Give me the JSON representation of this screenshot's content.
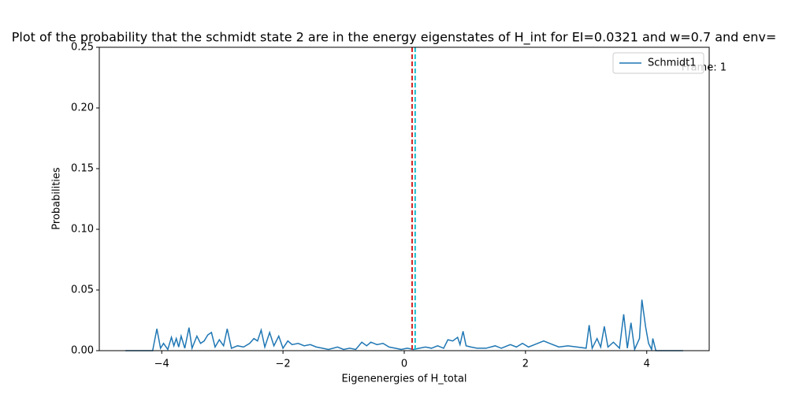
{
  "chart_data": {
    "type": "line",
    "title": "Plot of the probability that the schmidt state 2  are in the energy eigenstates of H_int for EI=0.0321 and w=0.7 and env=",
    "x_label": "Eigenenergies of H_total",
    "y_label": "Probabilities",
    "annotation": "Frame: 1",
    "legend": "upper right",
    "xlim": [
      -5.03,
      5.03
    ],
    "ylim": [
      0,
      0.25
    ],
    "xticks": [
      {
        "value": -4,
        "label": "−4"
      },
      {
        "value": -2,
        "label": "−2"
      },
      0,
      2,
      4
    ],
    "yticks": [
      {
        "value": 0,
        "label": "0.00"
      },
      {
        "value": 0.05,
        "label": "0.05"
      },
      {
        "value": 0.1,
        "label": "0.10"
      },
      {
        "value": 0.15,
        "label": "0.15"
      },
      {
        "value": 0.2,
        "label": "0.20"
      },
      {
        "value": 0.25,
        "label": "0.25"
      }
    ],
    "vlines": [
      {
        "x": 0.13,
        "color": "#d62728"
      },
      {
        "x": 0.18,
        "color": "#17becf"
      }
    ],
    "x": [
      -4.6,
      -4.15,
      -4.08,
      -4.02,
      -3.97,
      -3.9,
      -3.84,
      -3.8,
      -3.76,
      -3.72,
      -3.68,
      -3.62,
      -3.55,
      -3.5,
      -3.42,
      -3.36,
      -3.3,
      -3.24,
      -3.18,
      -3.12,
      -3.05,
      -2.98,
      -2.92,
      -2.85,
      -2.75,
      -2.65,
      -2.55,
      -2.48,
      -2.42,
      -2.36,
      -2.3,
      -2.22,
      -2.15,
      -2.07,
      -2.0,
      -1.92,
      -1.85,
      -1.75,
      -1.65,
      -1.55,
      -1.45,
      -1.35,
      -1.25,
      -1.1,
      -1.0,
      -0.9,
      -0.8,
      -0.7,
      -0.62,
      -0.55,
      -0.45,
      -0.35,
      -0.25,
      -0.15,
      -0.05,
      0.05,
      0.15,
      0.25,
      0.35,
      0.45,
      0.55,
      0.65,
      0.72,
      0.8,
      0.88,
      0.92,
      0.97,
      1.02,
      1.1,
      1.2,
      1.35,
      1.5,
      1.6,
      1.75,
      1.85,
      1.95,
      2.05,
      2.15,
      2.3,
      2.4,
      2.55,
      2.7,
      2.85,
      3.0,
      3.05,
      3.1,
      3.18,
      3.24,
      3.3,
      3.36,
      3.45,
      3.55,
      3.62,
      3.68,
      3.74,
      3.8,
      3.88,
      3.92,
      3.98,
      4.03,
      4.08,
      4.1,
      4.15,
      4.6
    ],
    "series": [
      {
        "name": "Schmidt1",
        "color": "#1f77b4",
        "values": [
          0,
          0,
          0.018,
          0.002,
          0.006,
          0.001,
          0.011,
          0.004,
          0.01,
          0.003,
          0.012,
          0.002,
          0.019,
          0.002,
          0.012,
          0.006,
          0.008,
          0.013,
          0.015,
          0.003,
          0.009,
          0.004,
          0.018,
          0.002,
          0.004,
          0.003,
          0.006,
          0.01,
          0.008,
          0.017,
          0.003,
          0.015,
          0.004,
          0.012,
          0.002,
          0.008,
          0.005,
          0.006,
          0.004,
          0.005,
          0.003,
          0.002,
          0.001,
          0.003,
          0.001,
          0.002,
          0.001,
          0.007,
          0.004,
          0.007,
          0.005,
          0.006,
          0.003,
          0.002,
          0.001,
          0.002,
          0.001,
          0.002,
          0.003,
          0.002,
          0.004,
          0.002,
          0.009,
          0.008,
          0.011,
          0.005,
          0.016,
          0.004,
          0.003,
          0.002,
          0.002,
          0.004,
          0.002,
          0.005,
          0.003,
          0.006,
          0.003,
          0.005,
          0.008,
          0.006,
          0.003,
          0.004,
          0.003,
          0.002,
          0.021,
          0.002,
          0.01,
          0.003,
          0.02,
          0.003,
          0.007,
          0.002,
          0.03,
          0.002,
          0.023,
          0.001,
          0.01,
          0.042,
          0.02,
          0.006,
          0.001,
          0.01,
          0,
          0
        ]
      }
    ]
  }
}
